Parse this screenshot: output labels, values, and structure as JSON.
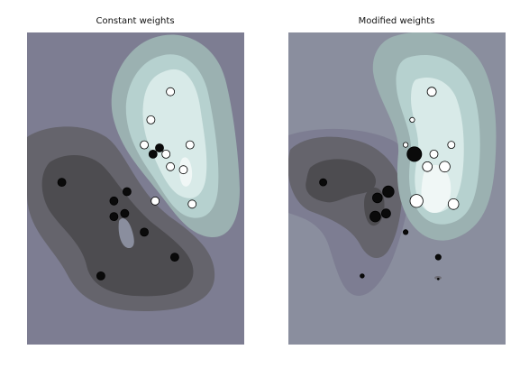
{
  "chart_data": [
    {
      "type": "scatter",
      "subtype": "filled-contour",
      "title": "Constant weights",
      "axes": "hidden",
      "xlim": [
        0,
        1
      ],
      "ylim": [
        0,
        1
      ],
      "contour_colors": [
        "#7d7d92",
        "#65646c",
        "#4d4c50",
        "#8a8e9e",
        "#9bb1b1",
        "#b6d1cf",
        "#d8eae8"
      ],
      "points": [
        {
          "x": 0.16,
          "y": 0.52,
          "w": 1,
          "label": "black"
        },
        {
          "x": 0.4,
          "y": 0.46,
          "w": 1,
          "label": "black"
        },
        {
          "x": 0.46,
          "y": 0.49,
          "w": 1,
          "label": "black"
        },
        {
          "x": 0.4,
          "y": 0.41,
          "w": 1,
          "label": "black"
        },
        {
          "x": 0.45,
          "y": 0.42,
          "w": 1,
          "label": "black"
        },
        {
          "x": 0.54,
          "y": 0.36,
          "w": 1,
          "label": "black"
        },
        {
          "x": 0.68,
          "y": 0.28,
          "w": 1,
          "label": "black"
        },
        {
          "x": 0.34,
          "y": 0.22,
          "w": 1,
          "label": "black"
        },
        {
          "x": 0.58,
          "y": 0.61,
          "w": 1,
          "label": "black"
        },
        {
          "x": 0.61,
          "y": 0.63,
          "w": 1,
          "label": "black"
        },
        {
          "x": 0.66,
          "y": 0.81,
          "w": 1,
          "label": "white"
        },
        {
          "x": 0.57,
          "y": 0.72,
          "w": 1,
          "label": "white"
        },
        {
          "x": 0.54,
          "y": 0.64,
          "w": 1,
          "label": "white"
        },
        {
          "x": 0.64,
          "y": 0.61,
          "w": 1,
          "label": "white"
        },
        {
          "x": 0.66,
          "y": 0.57,
          "w": 1,
          "label": "white"
        },
        {
          "x": 0.72,
          "y": 0.56,
          "w": 1,
          "label": "white"
        },
        {
          "x": 0.75,
          "y": 0.64,
          "w": 1,
          "label": "white"
        },
        {
          "x": 0.59,
          "y": 0.46,
          "w": 1,
          "label": "white"
        },
        {
          "x": 0.76,
          "y": 0.45,
          "w": 1,
          "label": "white"
        }
      ]
    },
    {
      "type": "scatter",
      "subtype": "filled-contour",
      "title": "Modified weights",
      "axes": "hidden",
      "xlim": [
        0,
        1
      ],
      "ylim": [
        0,
        1
      ],
      "contour_colors": [
        "#8a8e9e",
        "#7d7d92",
        "#65646c",
        "#4d4c50",
        "#9bb1b1",
        "#b6d1cf",
        "#d8eae8"
      ],
      "points": [
        {
          "x": 0.16,
          "y": 0.52,
          "w": 0.9,
          "label": "black"
        },
        {
          "x": 0.41,
          "y": 0.47,
          "w": 1.2,
          "label": "black"
        },
        {
          "x": 0.46,
          "y": 0.49,
          "w": 1.4,
          "label": "black"
        },
        {
          "x": 0.4,
          "y": 0.41,
          "w": 1.3,
          "label": "black"
        },
        {
          "x": 0.45,
          "y": 0.42,
          "w": 1.1,
          "label": "black"
        },
        {
          "x": 0.54,
          "y": 0.36,
          "w": 0.6,
          "label": "black"
        },
        {
          "x": 0.69,
          "y": 0.28,
          "w": 0.7,
          "label": "black"
        },
        {
          "x": 0.34,
          "y": 0.22,
          "w": 0.5,
          "label": "black"
        },
        {
          "x": 0.58,
          "y": 0.61,
          "w": 1.8,
          "label": "black"
        },
        {
          "x": 0.69,
          "y": 0.21,
          "w": 0.2,
          "label": "black"
        },
        {
          "x": 0.66,
          "y": 0.81,
          "w": 1.1,
          "label": "white"
        },
        {
          "x": 0.57,
          "y": 0.72,
          "w": 0.6,
          "label": "white"
        },
        {
          "x": 0.54,
          "y": 0.64,
          "w": 0.6,
          "label": "white"
        },
        {
          "x": 0.64,
          "y": 0.57,
          "w": 1.2,
          "label": "white"
        },
        {
          "x": 0.72,
          "y": 0.57,
          "w": 1.3,
          "label": "white"
        },
        {
          "x": 0.67,
          "y": 0.61,
          "w": 1.0,
          "label": "white"
        },
        {
          "x": 0.75,
          "y": 0.64,
          "w": 0.9,
          "label": "white"
        },
        {
          "x": 0.59,
          "y": 0.46,
          "w": 1.6,
          "label": "white"
        },
        {
          "x": 0.76,
          "y": 0.45,
          "w": 1.3,
          "label": "white"
        }
      ]
    }
  ]
}
